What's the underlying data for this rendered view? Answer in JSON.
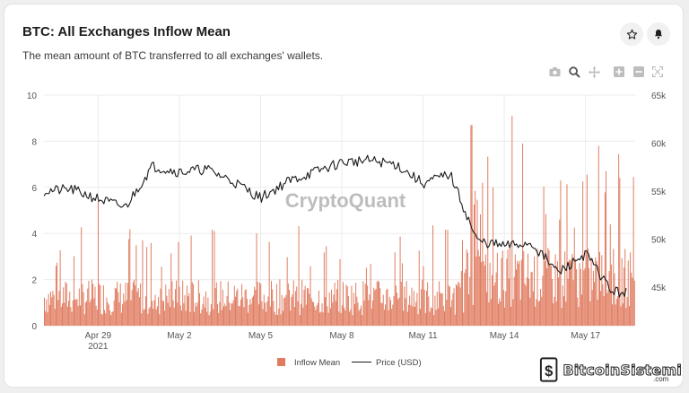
{
  "header": {
    "title": "BTC: All Exchanges Inflow Mean",
    "subtitle": "The mean amount of BTC transferred to all exchanges' wallets."
  },
  "actions": {
    "star_icon": "star-icon",
    "bell_icon": "bell-icon"
  },
  "toolbar": [
    "camera-icon",
    "zoom-icon",
    "pan-icon",
    "zoom-in-icon",
    "zoom-out-icon",
    "autoscale-icon"
  ],
  "watermark": {
    "text": "CryptoQuant"
  },
  "site_badge": {
    "logo": "BitcoinSistemi",
    "suffix": ".com"
  },
  "colors": {
    "bar": "#e07b5f",
    "bar_stroke": "#c96a50",
    "line": "#1a1a1a",
    "grid": "#ebebeb"
  },
  "chart_data": {
    "type": "bar",
    "x_range": [
      "2021-04-27",
      "2021-05-18"
    ],
    "x_ticks": [
      "Apr 29",
      "May 2",
      "May 5",
      "May 8",
      "May 11",
      "May 14",
      "May 17"
    ],
    "x_tick_subtitle": "2021",
    "y_left": {
      "ticks": [
        "0",
        "2",
        "4",
        "6",
        "8",
        "10"
      ],
      "range": [
        0,
        10
      ]
    },
    "y_right": {
      "ticks": [
        "45k",
        "50k",
        "55k",
        "60k",
        "65k"
      ],
      "range": [
        41000,
        65000
      ]
    },
    "grid": true,
    "legend_position": "bottom-center",
    "series": [
      {
        "name": "Inflow Mean",
        "type": "bar",
        "axis": "left",
        "spikes": [
          {
            "date": "2021-04-29T00:00",
            "value": 5.4
          },
          {
            "date": "2021-05-12T19:00",
            "value": 8.7
          },
          {
            "date": "2021-05-13T05:00",
            "value": 6.2
          },
          {
            "date": "2021-05-13T14:00",
            "value": 6.0
          },
          {
            "date": "2021-05-14T07:00",
            "value": 9.1
          },
          {
            "date": "2021-05-14T16:00",
            "value": 7.9
          },
          {
            "date": "2021-05-16T01:00",
            "value": 4.6
          },
          {
            "date": "2021-05-17T12:00",
            "value": 7.8
          },
          {
            "date": "2021-05-17T18:00",
            "value": 6.7
          },
          {
            "date": "2021-05-17T22:00",
            "value": 4.4
          }
        ],
        "baseline_mean": 1.3,
        "late_baseline_mean": 2.2
      },
      {
        "name": "Price (USD)",
        "type": "line",
        "axis": "right",
        "points": [
          [
            "2021-04-27",
            55000
          ],
          [
            "2021-04-28",
            55200
          ],
          [
            "2021-04-29",
            54200
          ],
          [
            "2021-04-30",
            53300
          ],
          [
            "2021-05-01",
            57600
          ],
          [
            "2021-05-02",
            57000
          ],
          [
            "2021-05-03",
            57300
          ],
          [
            "2021-05-04",
            56000
          ],
          [
            "2021-05-05",
            54300
          ],
          [
            "2021-05-06",
            56000
          ],
          [
            "2021-05-07",
            57000
          ],
          [
            "2021-05-08",
            58000
          ],
          [
            "2021-05-09",
            58200
          ],
          [
            "2021-05-10",
            57800
          ],
          [
            "2021-05-11",
            55800
          ],
          [
            "2021-05-12",
            56800
          ],
          [
            "2021-05-13",
            49800
          ],
          [
            "2021-05-14",
            49300
          ],
          [
            "2021-05-15",
            49600
          ],
          [
            "2021-05-16",
            46500
          ],
          [
            "2021-05-17",
            48500
          ],
          [
            "2021-05-18",
            44500
          ]
        ]
      }
    ]
  }
}
